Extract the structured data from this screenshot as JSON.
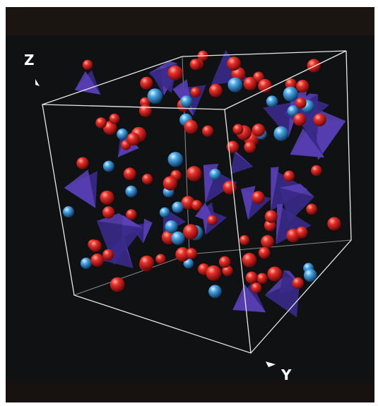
{
  "axes": {
    "z_label": "Z",
    "y_label": "Y"
  }
}
